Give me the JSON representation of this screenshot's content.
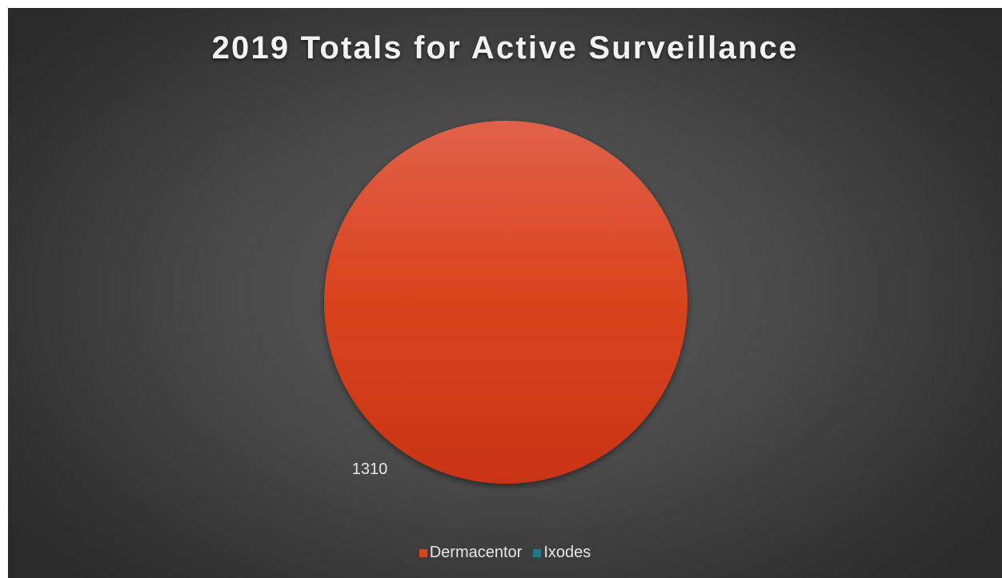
{
  "chart_data": {
    "type": "pie",
    "title": "2019 Totals for Active Surveillance",
    "categories": [
      "Dermacentor",
      "Ixodes"
    ],
    "values": [
      1310,
      0
    ],
    "data_labels": [
      "1310",
      ""
    ],
    "colors": [
      "#d9441c",
      "#1b7a87"
    ],
    "legend": {
      "position": "bottom",
      "entries": [
        "Dermacentor",
        "Ixodes"
      ]
    }
  }
}
